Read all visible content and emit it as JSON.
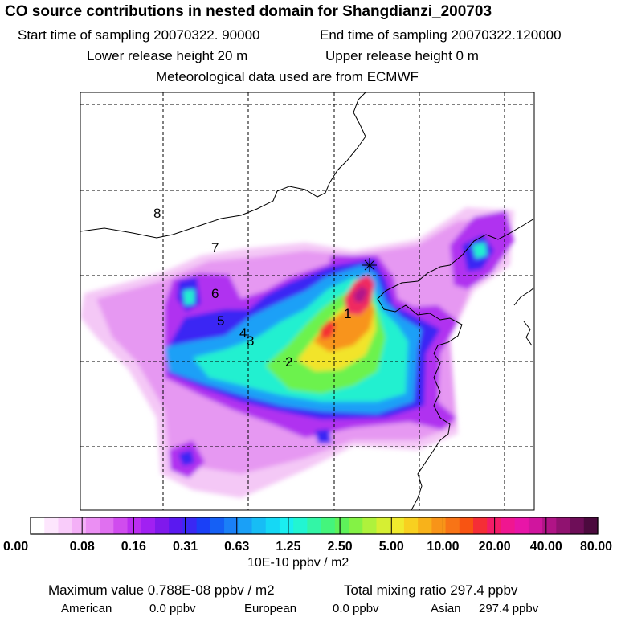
{
  "header": {
    "title": "CO  source contributions in nested domain for Shangdianzi_200703",
    "start_sampling": "Start time of sampling 20070322. 90000",
    "end_sampling": "End time of sampling 20070322.120000",
    "lower_release": "Lower release height   20 m",
    "upper_release": "Upper release height    0 m",
    "met_data": "Meteorological data used are from ECMWF"
  },
  "chart_data": {
    "type": "heatmap",
    "region_labels": [
      "1",
      "2",
      "3",
      "4",
      "5",
      "6",
      "7",
      "8"
    ],
    "colorbar": {
      "tick_labels": [
        "0.00",
        "0.08",
        "0.16",
        "0.31",
        "0.63",
        "1.25",
        "2.50",
        "5.00",
        "10.00",
        "20.00",
        "40.00",
        "80.00"
      ],
      "unit": "10E-10 ppbv / m2",
      "colors": [
        "#ffffff",
        "#fde6fd",
        "#f9ccfa",
        "#f4b0f7",
        "#eb8ff3",
        "#e070f0",
        "#d04cee",
        "#bb2ef0",
        "#a120f2",
        "#8019ec",
        "#5a19f0",
        "#3a28f4",
        "#1a40f7",
        "#1560f5",
        "#1a80f7",
        "#1aa0f7",
        "#17bdf5",
        "#15d8f5",
        "#1aeef0",
        "#22f5d2",
        "#33f5a6",
        "#44f57c",
        "#5ef25a",
        "#84f245",
        "#aef23c",
        "#d6ef33",
        "#f0ea2d",
        "#f8d020",
        "#f8b21a",
        "#f89418",
        "#f87416",
        "#f85412",
        "#f52e36",
        "#f31c68",
        "#f01690",
        "#e815a8",
        "#d0159e",
        "#b01486",
        "#901270",
        "#6e0e58",
        "#4c0a3e"
      ]
    },
    "grid": true,
    "receptor_marker": "cross"
  },
  "stats": {
    "max_value": "Maximum value  0.788E-08 ppbv / m2",
    "total_mixing": "Total mixing ratio     297.4 ppbv",
    "american_label": "American",
    "american_value": "0.0 ppbv",
    "european_label": "European",
    "european_value": "0.0 ppbv",
    "asian_label": "Asian",
    "asian_value": "297.4 ppbv"
  }
}
